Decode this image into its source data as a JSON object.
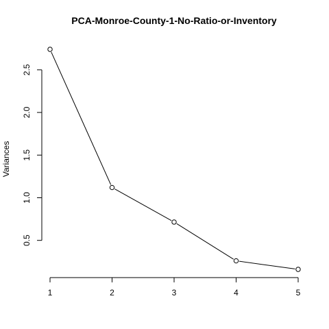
{
  "chart_data": {
    "type": "line",
    "title": "PCA-Monroe-County-1-No-Ratio-or-Inventory",
    "xlabel": "",
    "ylabel": "Variances",
    "x": [
      1,
      2,
      3,
      4,
      5
    ],
    "values": [
      2.74,
      1.12,
      0.715,
      0.26,
      0.16
    ],
    "xlim": [
      1,
      5
    ],
    "ylim": [
      0.16,
      2.74
    ],
    "x_ticks": [
      1,
      2,
      3,
      4,
      5
    ],
    "y_ticks": [
      0.5,
      1.0,
      1.5,
      2.0,
      2.5
    ],
    "y_tick_labels": [
      "0.5",
      "1.0",
      "1.5",
      "2.0",
      "2.5"
    ],
    "grid": false,
    "line_color": "#000000",
    "marker": "open-circle"
  }
}
